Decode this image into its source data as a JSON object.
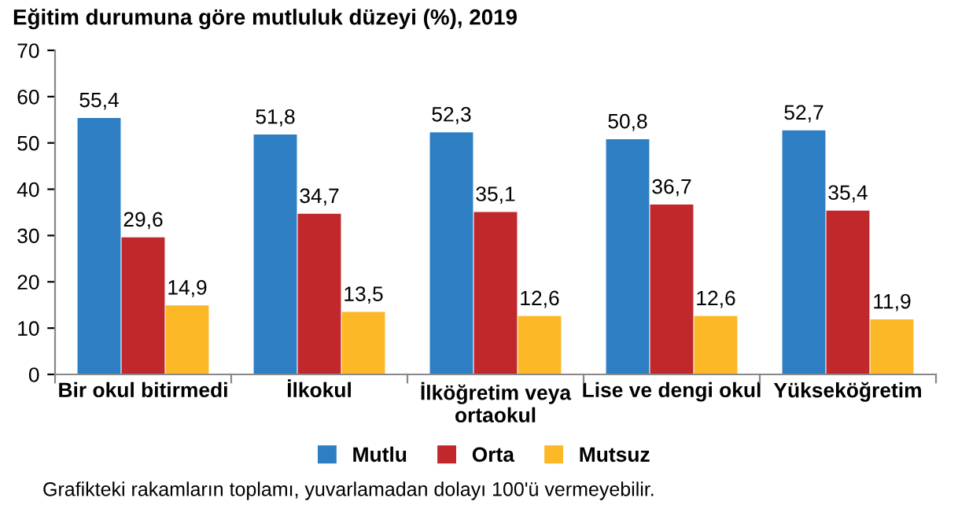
{
  "chart_data": {
    "type": "bar",
    "title": "Eğitim durumuna göre mutluluk düzeyi (%), 2019",
    "categories": [
      "Bir okul bitirmedi",
      "İlkokul",
      "İlköğretim veya\nortaokul",
      "Lise ve dengi okul",
      "Yükseköğretim"
    ],
    "series": [
      {
        "name": "Mutlu",
        "color": "#2e7ec4",
        "values": [
          55.4,
          51.8,
          52.3,
          50.8,
          52.7
        ],
        "value_labels": [
          "55,4",
          "51,8",
          "52,3",
          "50,8",
          "52,7"
        ]
      },
      {
        "name": "Orta",
        "color": "#c0282b",
        "values": [
          29.6,
          34.7,
          35.1,
          36.7,
          35.4
        ],
        "value_labels": [
          "29,6",
          "34,7",
          "35,1",
          "36,7",
          "35,4"
        ]
      },
      {
        "name": "Mutsuz",
        "color": "#fdb827",
        "values": [
          14.9,
          13.5,
          12.6,
          12.6,
          11.9
        ],
        "value_labels": [
          "14,9",
          "13,5",
          "12,6",
          "12,6",
          "11,9"
        ]
      }
    ],
    "ylim": [
      0,
      70
    ],
    "yticks": [
      0,
      10,
      20,
      30,
      40,
      50,
      60,
      70
    ],
    "grid": false,
    "legend": "bottom",
    "annotations": [
      "Grafikteki rakamların toplamı, yuvarlamadan dolayı 100'ü vermeyebilir."
    ]
  }
}
